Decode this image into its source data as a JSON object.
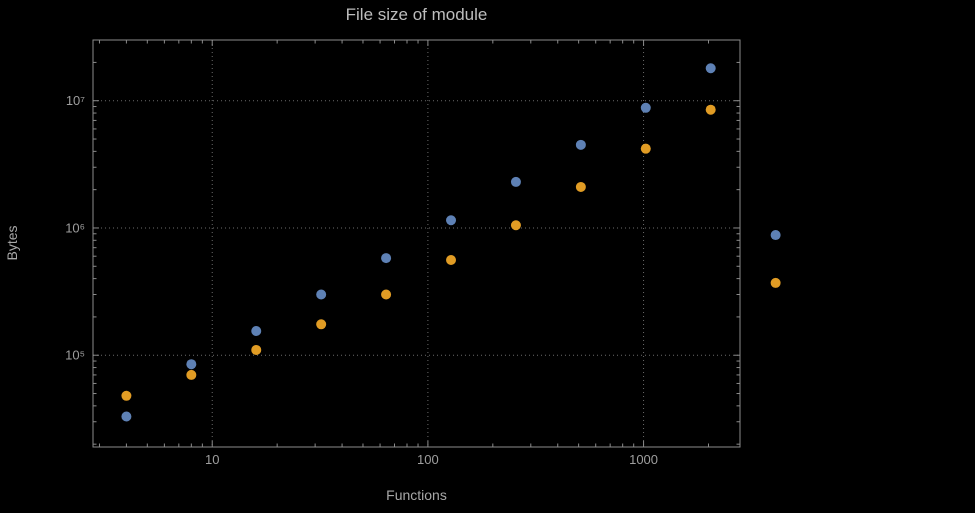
{
  "chart_data": {
    "type": "scatter",
    "title": "File size of module",
    "xlabel": "Functions",
    "ylabel": "Bytes",
    "x_scale": "log",
    "y_scale": "log",
    "xlim": [
      2.8,
      2800
    ],
    "ylim": [
      19000,
      30000000
    ],
    "grid": "dotted",
    "legend": "none",
    "x": [
      4,
      8,
      16,
      32,
      64,
      128,
      256,
      512,
      1024,
      2048,
      4096
    ],
    "series": [
      {
        "name": "series-blue",
        "color": "#5e81b5",
        "values": [
          33000,
          85000,
          155000,
          300000,
          580000,
          1150000,
          2300000,
          4500000,
          8800000,
          18000000,
          880000
        ]
      },
      {
        "name": "series-orange",
        "color": "#e19c24",
        "values": [
          48000,
          70000,
          110000,
          175000,
          300000,
          560000,
          1050000,
          2100000,
          4200000,
          8500000,
          370000
        ]
      }
    ],
    "x_ticks": [
      {
        "value": 10,
        "label": "10"
      },
      {
        "value": 100,
        "label": "100"
      },
      {
        "value": 1000,
        "label": "1000"
      }
    ],
    "y_ticks": [
      {
        "value": 100000,
        "label": "10⁵"
      },
      {
        "value": 1000000,
        "label": "10⁶"
      },
      {
        "value": 10000000,
        "label": "10⁷"
      }
    ],
    "colors": {
      "background": "#000000",
      "frame": "#8c8c8c",
      "grid": "#6b6b6b",
      "tick_text": "#9e9e9e",
      "label_text": "#a8a8a8",
      "title_text": "#bdbdbd"
    }
  }
}
